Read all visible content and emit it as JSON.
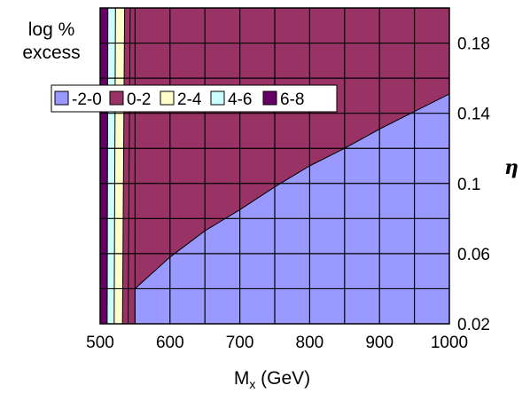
{
  "chart_data": {
    "type": "area",
    "title": "",
    "xlabel_main": "M",
    "xlabel_sub": "x",
    "xlabel_tail": " (GeV)",
    "ylabel": "η",
    "legend_title_line1": "log %",
    "legend_title_line2": "excess",
    "legend_position": "top-left",
    "grid": true,
    "xlim": [
      500,
      1000
    ],
    "ylim": [
      0.02,
      0.2
    ],
    "x_ticks": [
      "500",
      "600",
      "700",
      "800",
      "900",
      "1000"
    ],
    "y_ticks": [
      "0.02",
      "0.06",
      "0.1",
      "0.14",
      "0.18"
    ],
    "series": [
      {
        "name": "-2-0",
        "color": "#9999ff"
      },
      {
        "name": "0-2",
        "color": "#993366"
      },
      {
        "name": "2-4",
        "color": "#ffffcc"
      },
      {
        "name": "4-6",
        "color": "#ccffff"
      },
      {
        "name": "6-8",
        "color": "#660066"
      }
    ],
    "boundaries": {
      "b_0": [
        [
          550,
          0.02
        ],
        [
          550,
          0.04
        ],
        [
          600,
          0.058
        ],
        [
          650,
          0.073
        ],
        [
          700,
          0.085
        ],
        [
          750,
          0.098
        ],
        [
          800,
          0.11
        ],
        [
          850,
          0.12
        ],
        [
          900,
          0.131
        ],
        [
          950,
          0.141
        ],
        [
          1000,
          0.151
        ]
      ],
      "b_2": [
        [
          540,
          0.02
        ],
        [
          543,
          0.2
        ]
      ],
      "b_4": [
        [
          532,
          0.02
        ],
        [
          535,
          0.2
        ]
      ],
      "b_6": [
        [
          520,
          0.02
        ],
        [
          522,
          0.2
        ]
      ],
      "b_8": [
        [
          510,
          0.02
        ],
        [
          511,
          0.2
        ]
      ]
    }
  }
}
